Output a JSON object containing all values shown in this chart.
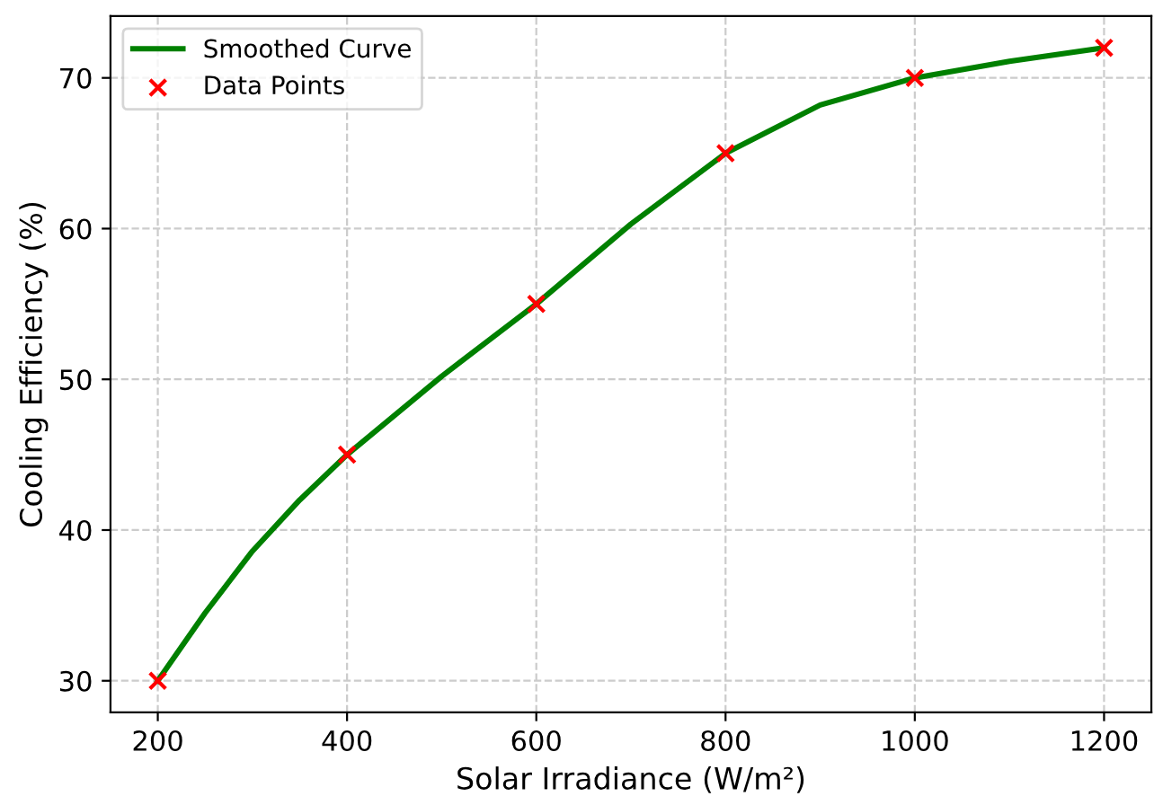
{
  "chart_data": {
    "type": "line",
    "xlabel": "Solar Irradiance (W/m²)",
    "ylabel": "Cooling Efficiency (%)",
    "series": [
      {
        "name": "Smoothed Curve",
        "color": "#008000",
        "marker": "none",
        "x": [
          200,
          250,
          300,
          350,
          400,
          500,
          600,
          700,
          800,
          900,
          1000,
          1100,
          1200
        ],
        "values": [
          30,
          34.5,
          38.6,
          42,
          45,
          50.2,
          55,
          60.3,
          65,
          68.2,
          70,
          71.1,
          72
        ]
      },
      {
        "name": "Data Points",
        "type": "scatter",
        "color": "#ff0000",
        "marker": "cross",
        "x": [
          200,
          400,
          600,
          800,
          1000,
          1200
        ],
        "values": [
          30,
          45,
          55,
          65,
          70,
          72
        ]
      }
    ],
    "xlim": [
      150,
      1250
    ],
    "ylim": [
      27.9,
      74.1
    ],
    "xticks": [
      200,
      400,
      600,
      800,
      1000,
      1200
    ],
    "yticks": [
      30,
      40,
      50,
      60,
      70
    ],
    "grid": true,
    "legend": "top left"
  }
}
